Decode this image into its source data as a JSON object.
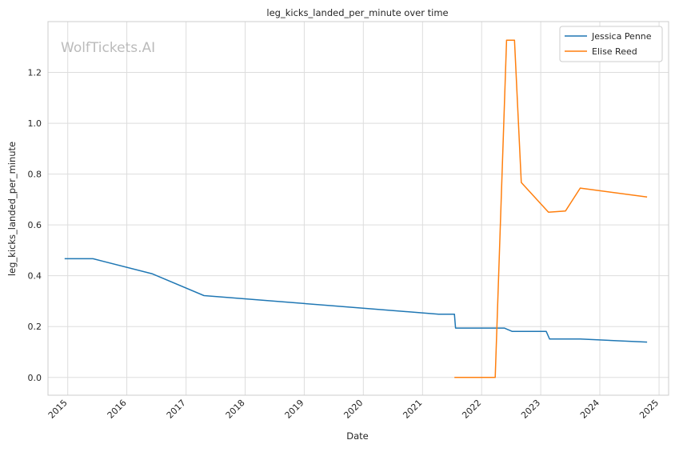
{
  "chart_data": {
    "type": "line",
    "title": "leg_kicks_landed_per_minute over time",
    "xlabel": "Date",
    "ylabel": "leg_kicks_landed_per_minute",
    "watermark": "WolfTickets.AI",
    "xlim": [
      "2014-09-01",
      "2025-03-01"
    ],
    "ylim": [
      -0.07,
      1.4
    ],
    "x_ticks": [
      "2015",
      "2016",
      "2017",
      "2018",
      "2019",
      "2020",
      "2021",
      "2022",
      "2023",
      "2024",
      "2025"
    ],
    "y_ticks": [
      "0.0",
      "0.2",
      "0.4",
      "0.6",
      "0.8",
      "1.0",
      "1.2"
    ],
    "grid": true,
    "legend_position": "top-right",
    "series": [
      {
        "name": "Jessica Penne",
        "color": "#1f77b4",
        "points": [
          [
            "2014-12-13",
            0.467
          ],
          [
            "2015-06-06",
            0.467
          ],
          [
            "2016-06-04",
            0.408
          ],
          [
            "2017-04-22",
            0.322
          ],
          [
            "2021-04-10",
            0.249
          ],
          [
            "2021-07-17",
            0.249
          ],
          [
            "2021-07-24",
            0.194
          ],
          [
            "2022-05-21",
            0.194
          ],
          [
            "2022-07-09",
            0.181
          ],
          [
            "2023-02-04",
            0.181
          ],
          [
            "2023-02-25",
            0.151
          ],
          [
            "2023-09-02",
            0.151
          ],
          [
            "2024-10-19",
            0.139
          ]
        ]
      },
      {
        "name": "Elise Reed",
        "color": "#ff7f0e",
        "points": [
          [
            "2021-07-17",
            0.0
          ],
          [
            "2022-03-26",
            0.0
          ],
          [
            "2022-06-04",
            1.327
          ],
          [
            "2022-07-23",
            1.327
          ],
          [
            "2022-09-03",
            0.767
          ],
          [
            "2023-02-18",
            0.65
          ],
          [
            "2023-06-03",
            0.655
          ],
          [
            "2023-09-02",
            0.745
          ],
          [
            "2024-10-19",
            0.71
          ]
        ]
      }
    ]
  }
}
